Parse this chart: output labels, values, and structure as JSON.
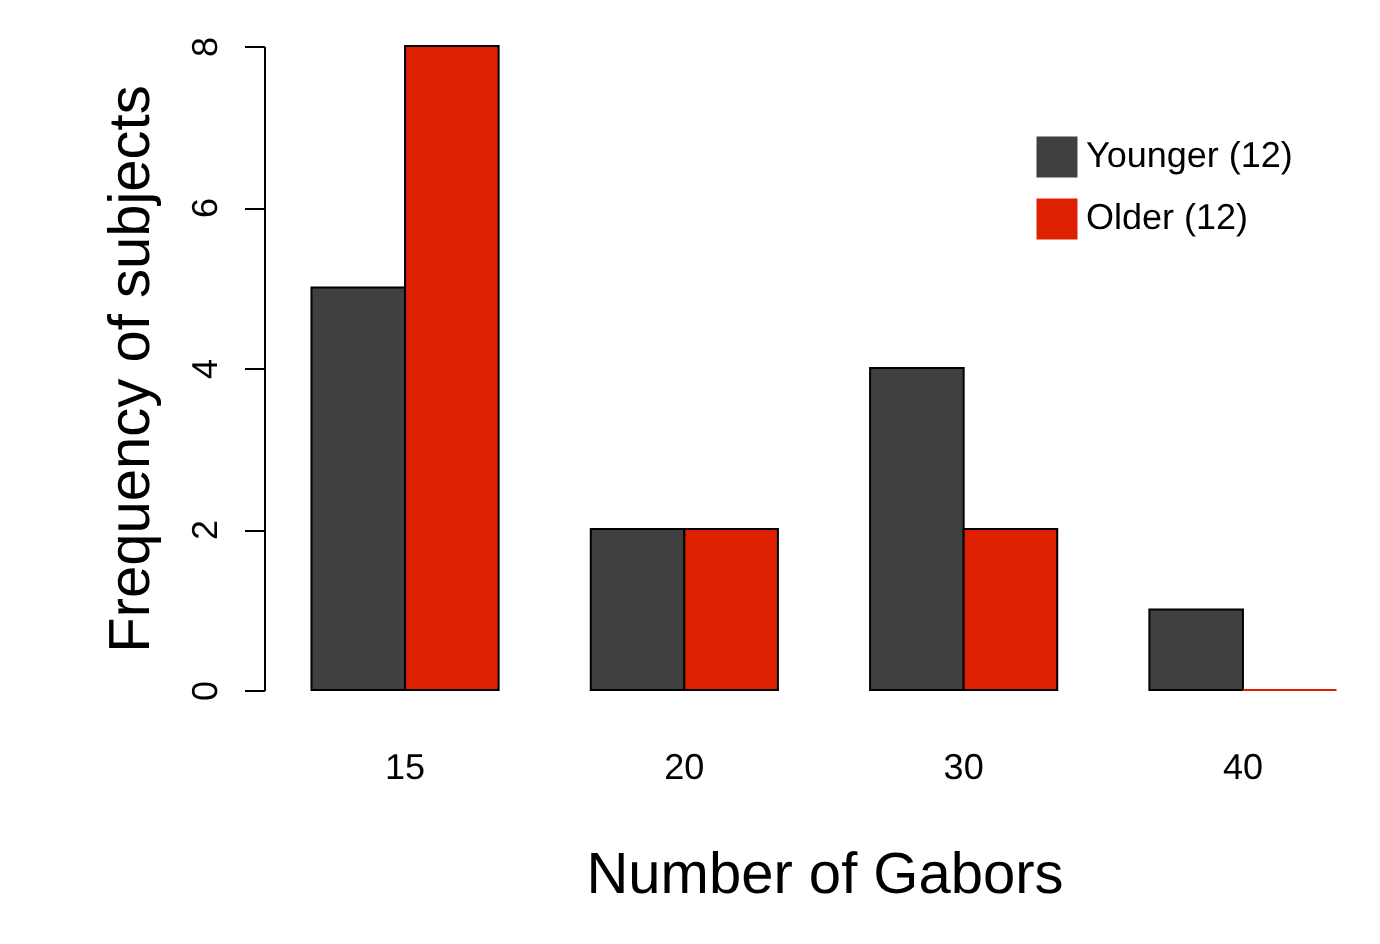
{
  "chart_data": {
    "type": "bar",
    "xlabel": "Number of Gabors",
    "ylabel": "Frequency of subjects",
    "categories": [
      "15",
      "20",
      "30",
      "40"
    ],
    "series": [
      {
        "name": "Younger (12)",
        "color": "#404040",
        "values": [
          5,
          2,
          4,
          1
        ]
      },
      {
        "name": "Older (12)",
        "color": "#dd2000",
        "values": [
          8,
          2,
          2,
          0
        ]
      }
    ],
    "ylim": [
      0,
      8
    ],
    "yticks": [
      0,
      2,
      4,
      6,
      8
    ],
    "grid": false,
    "legend": "top right"
  }
}
